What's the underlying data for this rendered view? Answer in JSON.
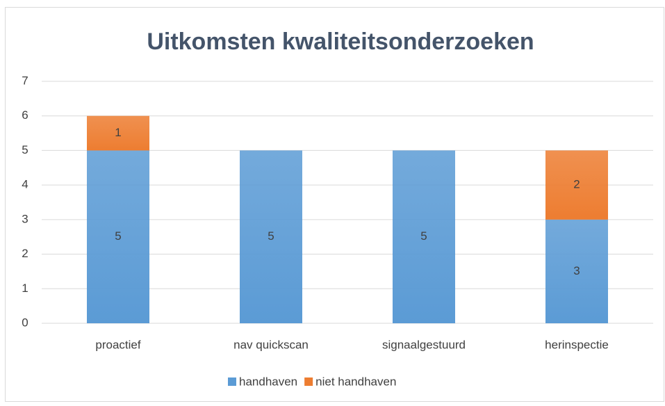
{
  "chart_data": {
    "type": "stacked_bar",
    "title": "Uitkomsten kwaliteitsonderzoeken",
    "categories": [
      "proactief",
      "nav quickscan",
      "signaalgestuurd",
      "herinspectie"
    ],
    "series": [
      {
        "name": "handhaven",
        "color": "#5b9bd5",
        "values": [
          5,
          5,
          5,
          3
        ]
      },
      {
        "name": "niet handhaven",
        "color": "#ed7d31",
        "values": [
          1,
          null,
          null,
          2
        ]
      }
    ],
    "ylim": [
      0,
      7
    ],
    "yticks": [
      0,
      1,
      2,
      3,
      4,
      5,
      6,
      7
    ],
    "grid": true,
    "legend": "bottom"
  }
}
